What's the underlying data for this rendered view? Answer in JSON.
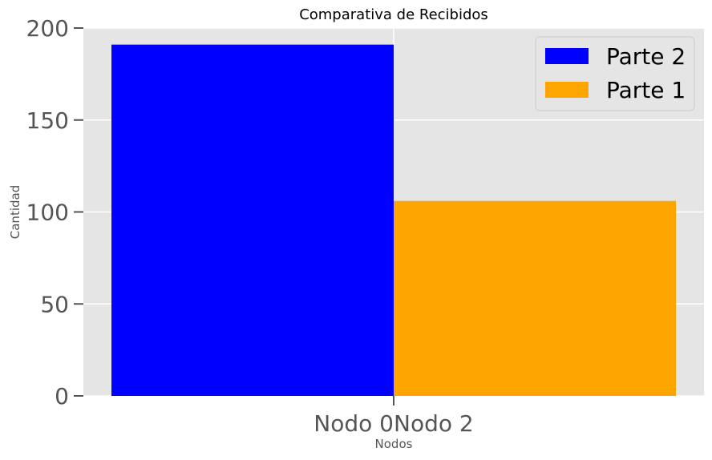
{
  "chart_data": {
    "type": "bar",
    "title": "Comparativa de Recibidos",
    "xlabel": "Nodos",
    "ylabel": "Cantidad",
    "ylim": [
      0,
      200
    ],
    "yticks": [
      "0",
      "50",
      "100",
      "150",
      "200"
    ],
    "xtick_labels": [
      "Nodo 0",
      "Nodo 2"
    ],
    "grid": true,
    "legend_position": "top-right",
    "series": [
      {
        "name": "Parte 2",
        "category": "Nodo 0",
        "value": 191,
        "color": "#0000ff"
      },
      {
        "name": "Parte 1",
        "category": "Nodo 2",
        "value": 106,
        "color": "#ffa500"
      }
    ],
    "colors": {
      "plot_background": "#e5e5e5",
      "grid": "#ffffff"
    }
  }
}
